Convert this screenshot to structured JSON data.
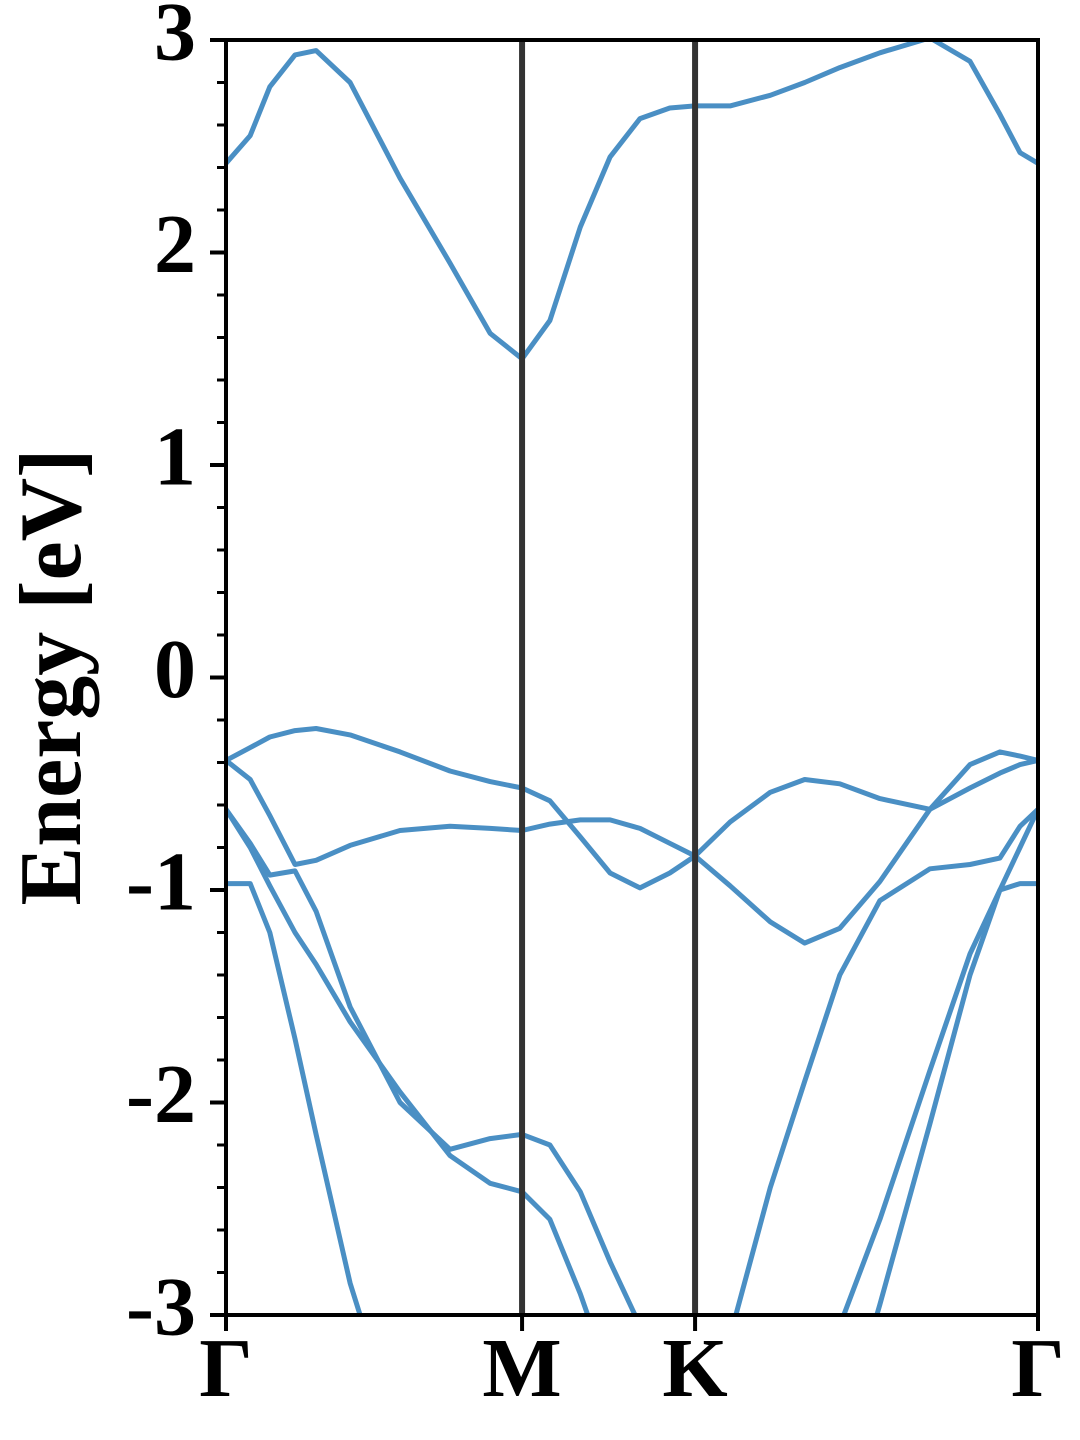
{
  "chart_data": {
    "type": "line",
    "ylabel": "Energy [eV]",
    "x": [
      0,
      0.047,
      0.085,
      0.134,
      0.175,
      0.241,
      0.338,
      0.435,
      0.513,
      0.575,
      0.629,
      0.688,
      0.746,
      0.804,
      0.862,
      0.911,
      0.979,
      1.057,
      1.124,
      1.192,
      1.27,
      1.367,
      1.445,
      1.503,
      1.542,
      1.577
    ],
    "xlim": [
      0,
      1.577
    ],
    "xticks": [
      {
        "value": 0,
        "label": "Γ"
      },
      {
        "value": 0.575,
        "label": "M"
      },
      {
        "value": 0.911,
        "label": "K"
      },
      {
        "value": 1.577,
        "label": "Γ"
      }
    ],
    "ylim": [
      -3,
      3
    ],
    "yticks": [
      -3,
      -2,
      -1,
      0,
      1,
      2,
      3
    ],
    "yminorticks": [
      -2.8,
      -2.6,
      -2.4,
      -2.2,
      -1.8,
      -1.6,
      -1.4,
      -1.2,
      -0.8,
      -0.6,
      -0.4,
      -0.2,
      0.2,
      0.4,
      0.6,
      0.8,
      1.2,
      1.4,
      1.6,
      1.8,
      2.2,
      2.4,
      2.6,
      2.8
    ],
    "series": [
      {
        "color": "#4a8fc4",
        "values": [
          2.42,
          2.55,
          2.78,
          2.93,
          2.95,
          2.8,
          2.35,
          1.95,
          1.62,
          1.5,
          1.68,
          2.12,
          2.45,
          2.63,
          2.68,
          2.69,
          2.69,
          2.74,
          2.8,
          2.87,
          2.94,
          3.01,
          2.9,
          2.65,
          2.47,
          2.42
        ]
      },
      {
        "color": "#4a8fc4",
        "values": [
          -0.39,
          -0.33,
          -0.28,
          -0.25,
          -0.24,
          -0.27,
          -0.35,
          -0.44,
          -0.49,
          -0.52,
          -0.58,
          -0.75,
          -0.92,
          -0.99,
          -0.92,
          -0.84,
          -0.68,
          -0.54,
          -0.48,
          -0.5,
          -0.57,
          -0.62,
          -0.52,
          -0.45,
          -0.41,
          -0.39
        ]
      },
      {
        "color": "#4a8fc4",
        "values": [
          -0.39,
          -0.48,
          -0.65,
          -0.88,
          -0.86,
          -0.79,
          -0.72,
          -0.7,
          -0.71,
          -0.72,
          -0.69,
          -0.67,
          -0.67,
          -0.71,
          -0.78,
          -0.84,
          -0.98,
          -1.15,
          -1.25,
          -1.18,
          -0.96,
          -0.62,
          -0.41,
          -0.35,
          -0.37,
          -0.39
        ]
      },
      {
        "color": "#4a8fc4",
        "values": [
          -0.62,
          -0.78,
          -0.93,
          -0.91,
          -1.1,
          -1.55,
          -2.0,
          -2.22,
          -2.17,
          -2.15,
          -2.2,
          -2.42,
          -2.75,
          -3.05,
          -3.4,
          null,
          -3.1,
          -2.4,
          -1.9,
          -1.4,
          -1.05,
          -0.9,
          -0.88,
          -0.85,
          -0.7,
          -0.62
        ]
      },
      {
        "color": "#4a8fc4",
        "values": [
          -0.62,
          -0.8,
          -0.98,
          -1.2,
          -1.35,
          -1.62,
          -1.95,
          -2.25,
          -2.38,
          -2.42,
          -2.55,
          -2.9,
          -3.3,
          null,
          null,
          null,
          null,
          null,
          -3.5,
          -3.05,
          -2.55,
          -1.85,
          -1.3,
          -1.0,
          -0.8,
          -0.62
        ]
      },
      {
        "color": "#4a8fc4",
        "values": [
          -0.97,
          -0.97,
          -1.2,
          -1.7,
          -2.15,
          -2.85,
          -3.6,
          null,
          null,
          null,
          null,
          null,
          null,
          null,
          null,
          null,
          null,
          null,
          null,
          -3.6,
          -2.95,
          -2.1,
          -1.4,
          -1.0,
          -0.97,
          -0.97
        ]
      }
    ]
  }
}
